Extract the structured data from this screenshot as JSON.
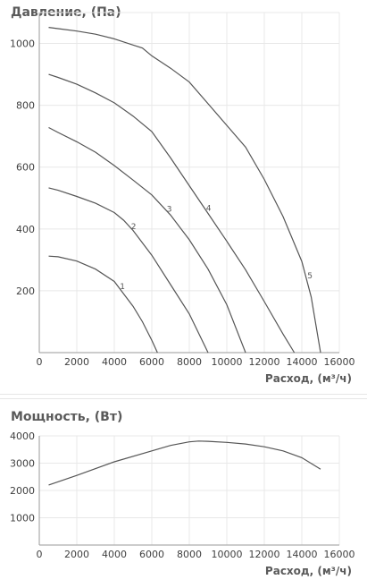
{
  "chart_data": [
    {
      "type": "line",
      "title": "Давление, (Па)",
      "xlabel": "Расход, (м³/ч)",
      "ylabel": "",
      "xlim": [
        0,
        16000
      ],
      "ylim": [
        0,
        1100
      ],
      "xticks": [
        0,
        2000,
        4000,
        6000,
        8000,
        10000,
        12000,
        14000,
        16000
      ],
      "yticks": [
        200,
        400,
        600,
        800,
        1000
      ],
      "grid": true,
      "series": [
        {
          "name": "1",
          "x": [
            500,
            1000,
            2000,
            3000,
            4000,
            4500,
            5000,
            5500,
            6000,
            6300
          ],
          "y": [
            312,
            310,
            296,
            270,
            230,
            190,
            150,
            100,
            40,
            0
          ]
        },
        {
          "name": "2",
          "x": [
            500,
            1000,
            2000,
            3000,
            4000,
            4500,
            5000,
            6000,
            7000,
            8000,
            9000
          ],
          "y": [
            533,
            525,
            505,
            483,
            453,
            428,
            395,
            315,
            220,
            125,
            0
          ]
        },
        {
          "name": "3",
          "x": [
            500,
            1000,
            2000,
            3000,
            4000,
            5000,
            6000,
            7000,
            8000,
            9000,
            10000,
            11000
          ],
          "y": [
            728,
            712,
            682,
            648,
            605,
            558,
            510,
            445,
            365,
            270,
            155,
            0
          ]
        },
        {
          "name": "4",
          "x": [
            500,
            1000,
            2000,
            3000,
            4000,
            5000,
            6000,
            7000,
            8000,
            9000,
            10000,
            11000,
            12000,
            13000,
            13600
          ],
          "y": [
            900,
            890,
            868,
            840,
            808,
            765,
            715,
            630,
            540,
            450,
            360,
            268,
            165,
            60,
            0
          ]
        },
        {
          "name": "5",
          "x": [
            500,
            1000,
            2000,
            3000,
            4000,
            5000,
            5500,
            6000,
            7000,
            8000,
            9000,
            10000,
            11000,
            12000,
            13000,
            14000,
            14500,
            15000
          ],
          "y": [
            1052,
            1048,
            1040,
            1030,
            1015,
            995,
            985,
            960,
            920,
            875,
            805,
            735,
            665,
            560,
            440,
            295,
            180,
            0
          ]
        }
      ],
      "label_positions": [
        {
          "series": "1",
          "x": 4200
        },
        {
          "series": "2",
          "x": 4800
        },
        {
          "series": "3",
          "x": 6700
        },
        {
          "series": "4",
          "x": 8800
        },
        {
          "series": "5",
          "x": 14200
        }
      ]
    },
    {
      "type": "line",
      "title": "Мощность, (Вт)",
      "xlabel": "Расход, (м³/ч)",
      "ylabel": "",
      "xlim": [
        0,
        16000
      ],
      "ylim": [
        0,
        4000
      ],
      "xticks": [
        0,
        2000,
        4000,
        6000,
        8000,
        10000,
        12000,
        14000,
        16000
      ],
      "yticks": [
        1000,
        2000,
        3000,
        4000
      ],
      "grid": true,
      "series": [
        {
          "x": [
            500,
            2000,
            4000,
            6000,
            7000,
            8000,
            8500,
            9000,
            10000,
            11000,
            12000,
            13000,
            14000,
            15000
          ],
          "y": [
            2200,
            2550,
            3050,
            3450,
            3650,
            3780,
            3810,
            3800,
            3760,
            3700,
            3600,
            3450,
            3200,
            2780
          ]
        }
      ]
    }
  ]
}
